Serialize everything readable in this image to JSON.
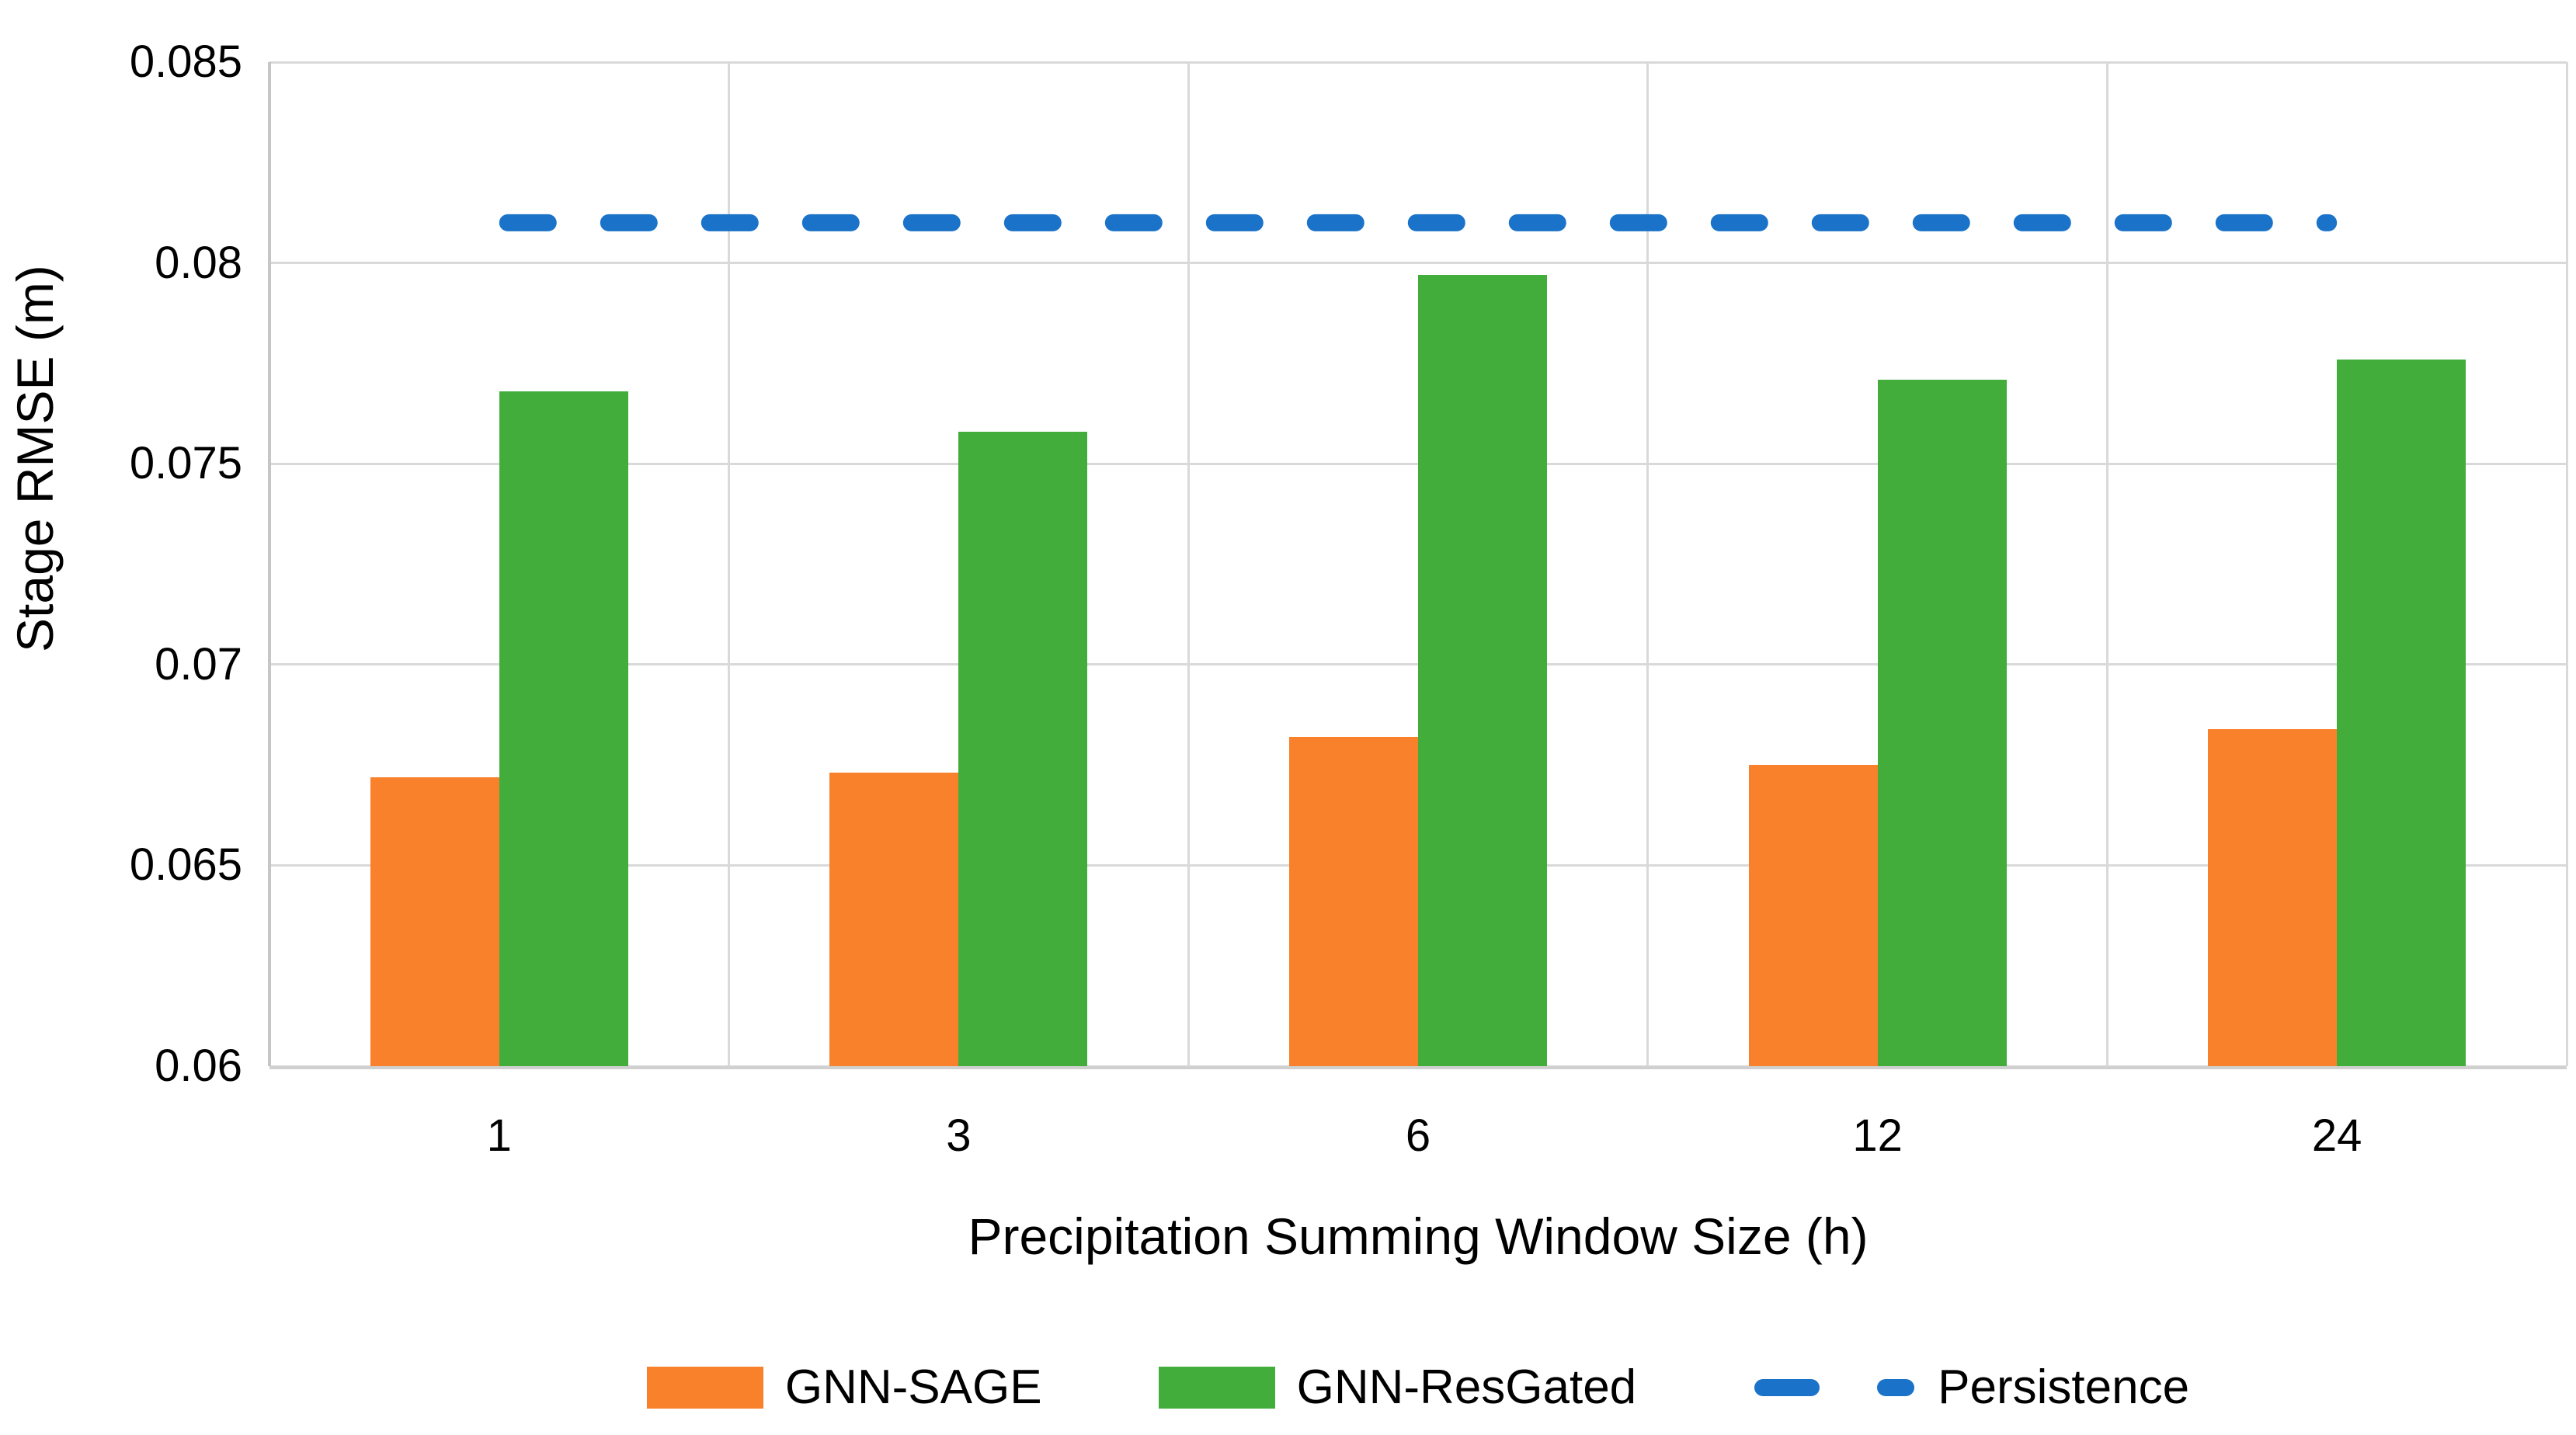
{
  "chart_data": {
    "type": "bar",
    "title": "",
    "categories": [
      "1",
      "3",
      "6",
      "12",
      "24"
    ],
    "series": [
      {
        "name": "GNN-SAGE",
        "type": "bar",
        "color": "#f9812c",
        "values": [
          0.0672,
          0.0673,
          0.0682,
          0.0675,
          0.0684
        ]
      },
      {
        "name": "GNN-ResGated",
        "type": "bar",
        "color": "#43ad3c",
        "values": [
          0.0768,
          0.0758,
          0.0797,
          0.0771,
          0.0776
        ]
      },
      {
        "name": "Persistence",
        "type": "line",
        "line_style": "dashed",
        "color": "#1b73c9",
        "values": [
          0.081,
          0.081,
          0.081,
          0.081,
          0.081
        ]
      }
    ],
    "xlabel": "Precipitation Summing Window Size (h)",
    "ylabel": "Stage RMSE (m)",
    "ylim": [
      0.06,
      0.085
    ],
    "y_ticks": [
      0.085,
      0.08,
      0.075,
      0.07,
      0.065,
      0.06
    ],
    "y_tick_labels": [
      "0.085",
      "0.08",
      "0.075",
      "0.07",
      "0.065",
      "0.06"
    ],
    "grid": true,
    "legend_position": "bottom",
    "colors": {
      "gridline": "#d9d9d9",
      "axis": "#c6c6c6",
      "text": "#000000",
      "background": "#ffffff"
    }
  }
}
